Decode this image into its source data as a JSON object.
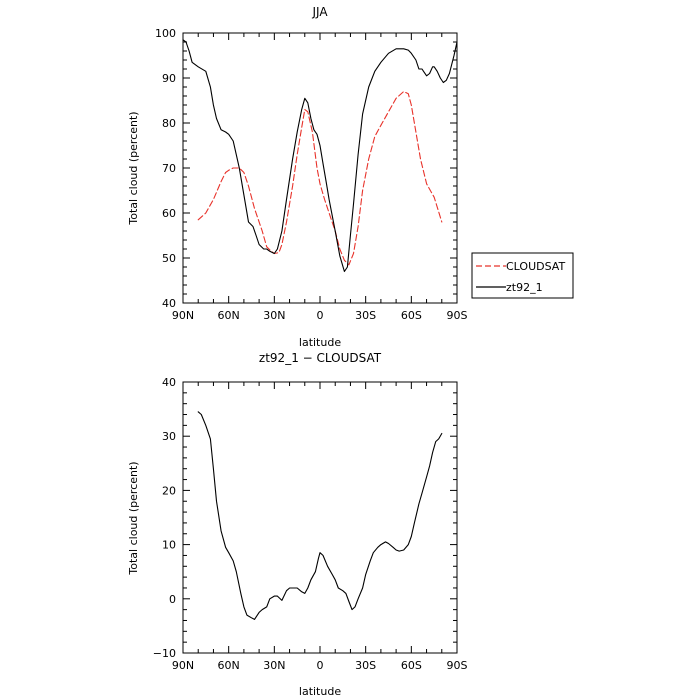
{
  "chart_data": [
    {
      "type": "line",
      "title": "JJA",
      "xlabel": "latitude",
      "ylabel": "Total cloud (percent)",
      "xlim": [
        90,
        -90
      ],
      "ylim": [
        40,
        100
      ],
      "x_ticks": [
        90,
        60,
        30,
        0,
        -30,
        -60,
        -90
      ],
      "x_tick_labels": [
        "90N",
        "60N",
        "30N",
        "0",
        "30S",
        "60S",
        "90S"
      ],
      "y_ticks": [
        40,
        50,
        60,
        70,
        80,
        90,
        100
      ],
      "y_tick_labels": [
        "40",
        "50",
        "60",
        "70",
        "80",
        "90",
        "100"
      ],
      "grid": false,
      "legend_position": "right-outside",
      "series": [
        {
          "name": "CLOUDSAT",
          "color": "#e8332b",
          "dash": "dashed",
          "x": [
            80,
            75,
            70,
            65,
            62,
            60,
            57,
            53,
            50,
            47,
            43,
            38,
            35,
            32,
            30,
            27,
            25,
            22,
            18,
            15,
            12,
            10,
            8,
            5,
            2,
            0,
            -3,
            -6,
            -10,
            -13,
            -16,
            -19,
            -22,
            -25,
            -28,
            -32,
            -36,
            -40,
            -45,
            -50,
            -55,
            -58,
            -60,
            -63,
            -66,
            -70,
            -75,
            -80
          ],
          "y": [
            58.5,
            60,
            63,
            67,
            69,
            69.5,
            70,
            70,
            69,
            66,
            61,
            56,
            52.5,
            51.5,
            51,
            51.2,
            53,
            58,
            66,
            73,
            79,
            83,
            82.5,
            78,
            70,
            66.5,
            63,
            60,
            56,
            52,
            49.5,
            48.5,
            51,
            57,
            65,
            72,
            77,
            79.5,
            82.5,
            85.5,
            87,
            86.5,
            84,
            78,
            72,
            66.5,
            63.5,
            58
          ]
        },
        {
          "name": "zt92_1",
          "color": "#000000",
          "dash": "solid",
          "x": [
            90,
            88,
            86,
            84,
            80,
            75,
            72,
            70,
            68,
            65,
            62,
            60,
            57,
            53,
            50,
            47,
            44,
            42,
            40,
            37,
            35,
            33,
            30,
            28,
            25,
            22,
            18,
            15,
            12,
            10,
            8,
            6,
            4,
            2,
            0,
            -2,
            -4,
            -6,
            -10,
            -13,
            -16,
            -18,
            -20,
            -22,
            -25,
            -28,
            -32,
            -36,
            -40,
            -45,
            -50,
            -55,
            -58,
            -60,
            -63,
            -65,
            -67,
            -68,
            -70,
            -72,
            -74,
            -75,
            -77,
            -79,
            -81,
            -83,
            -85,
            -88,
            -90
          ],
          "y": [
            98.5,
            98,
            96,
            93.5,
            92.5,
            91.5,
            88,
            84,
            81,
            78.5,
            78,
            77.5,
            76,
            70,
            64,
            58,
            57,
            55,
            53,
            52,
            52,
            51.5,
            51,
            52,
            56,
            63,
            72,
            78,
            83,
            85.5,
            84.5,
            81,
            78.5,
            77.5,
            75,
            71,
            67,
            63,
            56,
            50.5,
            47,
            48,
            55,
            62,
            73,
            82,
            88,
            91.5,
            93.5,
            95.5,
            96.5,
            96.5,
            96.2,
            95.5,
            94,
            92,
            92,
            91.5,
            90.5,
            91,
            92.5,
            92.5,
            91.5,
            90,
            89,
            89.5,
            91,
            95,
            98
          ]
        }
      ]
    },
    {
      "type": "line",
      "title": "zt92_1 − CLOUDSAT",
      "xlabel": "latitude",
      "ylabel": "Total cloud (percent)",
      "xlim": [
        90,
        -90
      ],
      "ylim": [
        -10,
        40
      ],
      "x_ticks": [
        90,
        60,
        30,
        0,
        -30,
        -60,
        -90
      ],
      "x_tick_labels": [
        "90N",
        "60N",
        "30N",
        "0",
        "30S",
        "60S",
        "90S"
      ],
      "y_ticks": [
        -10,
        0,
        10,
        20,
        30,
        40
      ],
      "y_tick_labels": [
        "−10",
        "0",
        "10",
        "20",
        "30",
        "40"
      ],
      "grid": false,
      "series": [
        {
          "color": "#000000",
          "dash": "solid",
          "x": [
            80,
            78,
            75,
            72,
            70,
            68,
            65,
            62,
            60,
            57,
            55,
            52,
            50,
            48,
            45,
            43,
            40,
            38,
            35,
            33,
            30,
            28,
            25,
            22,
            20,
            18,
            15,
            12,
            10,
            8,
            6,
            3,
            1,
            0,
            -2,
            -5,
            -8,
            -10,
            -12,
            -15,
            -17,
            -19,
            -21,
            -23,
            -25,
            -28,
            -30,
            -33,
            -35,
            -38,
            -40,
            -43,
            -45,
            -48,
            -50,
            -52,
            -55,
            -58,
            -60,
            -62,
            -65,
            -67,
            -70,
            -72,
            -74,
            -76,
            -78,
            -80
          ],
          "y": [
            34.5,
            34,
            32,
            29.5,
            24,
            18,
            12.5,
            9.5,
            8.5,
            7,
            5,
            1,
            -1.5,
            -3,
            -3.5,
            -3.8,
            -2.5,
            -2,
            -1.5,
            0,
            0.5,
            0.5,
            -0.3,
            1.5,
            2,
            2,
            2,
            1.3,
            1,
            2,
            3.5,
            5,
            7.5,
            8.5,
            8,
            6,
            4.5,
            3.5,
            2,
            1.5,
            1,
            -0.5,
            -2,
            -1.5,
            0,
            2,
            4.5,
            7,
            8.5,
            9.5,
            10,
            10.5,
            10.2,
            9.5,
            9,
            8.8,
            9,
            10,
            11.5,
            14,
            17.5,
            19.5,
            22.5,
            24.5,
            27,
            29,
            29.5,
            30.5
          ]
        }
      ]
    }
  ]
}
